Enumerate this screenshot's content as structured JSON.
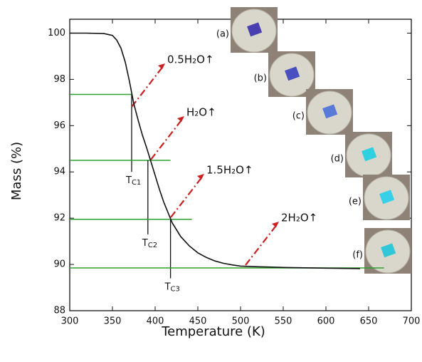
{
  "chart_data": {
    "type": "line",
    "x_label": "Temperature (K)",
    "y_label": "Mass (%)",
    "xlim": [
      300,
      700
    ],
    "xticks": [
      300,
      350,
      400,
      450,
      500,
      550,
      600,
      650,
      700
    ],
    "ylim": [
      88,
      100.6
    ],
    "yticks": [
      88,
      90,
      92,
      94,
      96,
      98,
      100
    ],
    "color": "#111111",
    "level_color": "#2ca02c",
    "arrow_color": "#cc1f1f",
    "x": [
      300,
      320,
      340,
      350,
      355,
      360,
      365,
      370,
      375,
      380,
      385,
      390,
      395,
      400,
      405,
      410,
      420,
      430,
      440,
      450,
      460,
      470,
      480,
      490,
      500,
      520,
      550,
      600,
      640
    ],
    "values": [
      100,
      100,
      99.98,
      99.9,
      99.7,
      99.35,
      98.75,
      97.9,
      96.95,
      96.25,
      95.6,
      95.05,
      94.45,
      93.85,
      93.25,
      92.7,
      91.8,
      91.2,
      90.8,
      90.5,
      90.3,
      90.15,
      90.05,
      89.98,
      89.93,
      89.9,
      89.87,
      89.84,
      89.82
    ],
    "steps": [
      {
        "level": 97.35,
        "end": 372.5,
        "label": "0.5H₂O↑",
        "t_name": "T",
        "t_sub": "C1",
        "t_bottom": 94.0
      },
      {
        "level": 94.5,
        "end": 418,
        "label": "H₂O↑",
        "t_name": "T",
        "t_sub": "C2",
        "t_x": 391.5,
        "t_bottom": 91.3
      },
      {
        "level": 91.95,
        "end": 443,
        "label": "1.5H₂O↑",
        "t_name": "T",
        "t_sub": "C3",
        "t_x": 418,
        "t_bottom": 89.4
      },
      {
        "level": 89.85,
        "end": 668,
        "label": "2H₂O↑"
      }
    ],
    "photos": [
      "(a)",
      "(b)",
      "(c)",
      "(d)",
      "(e)",
      "(f)"
    ]
  }
}
